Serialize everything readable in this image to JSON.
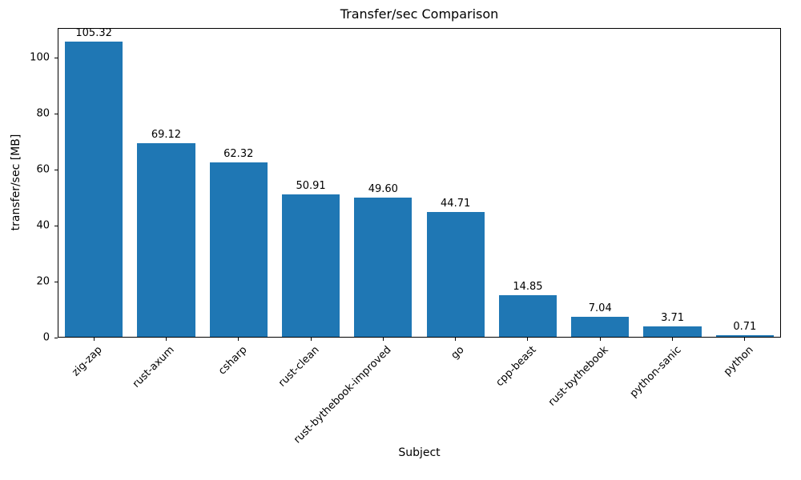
{
  "chart_data": {
    "type": "bar",
    "title": "Transfer/sec Comparison",
    "xlabel": "Subject",
    "ylabel": "transfer/sec [MB]",
    "categories": [
      "zig-zap",
      "rust-axum",
      "csharp",
      "rust-clean",
      "rust-bythebook-improved",
      "go",
      "cpp-beast",
      "rust-bythebook",
      "python-sanic",
      "python"
    ],
    "values": [
      105.32,
      69.12,
      62.32,
      50.91,
      49.6,
      44.71,
      14.85,
      7.04,
      3.71,
      0.71
    ],
    "value_labels": [
      "105.32",
      "69.12",
      "62.32",
      "50.91",
      "49.60",
      "44.71",
      "14.85",
      "7.04",
      "3.71",
      "0.71"
    ],
    "bar_color": "#1f77b4",
    "axis_color": "#000000",
    "ylim": [
      0,
      110.6
    ],
    "yticks": [
      0,
      20,
      40,
      60,
      80,
      100
    ],
    "grid": false,
    "legend_position": "none",
    "bar_width_fraction": 0.8,
    "x_tick_rotation_deg": 45
  }
}
